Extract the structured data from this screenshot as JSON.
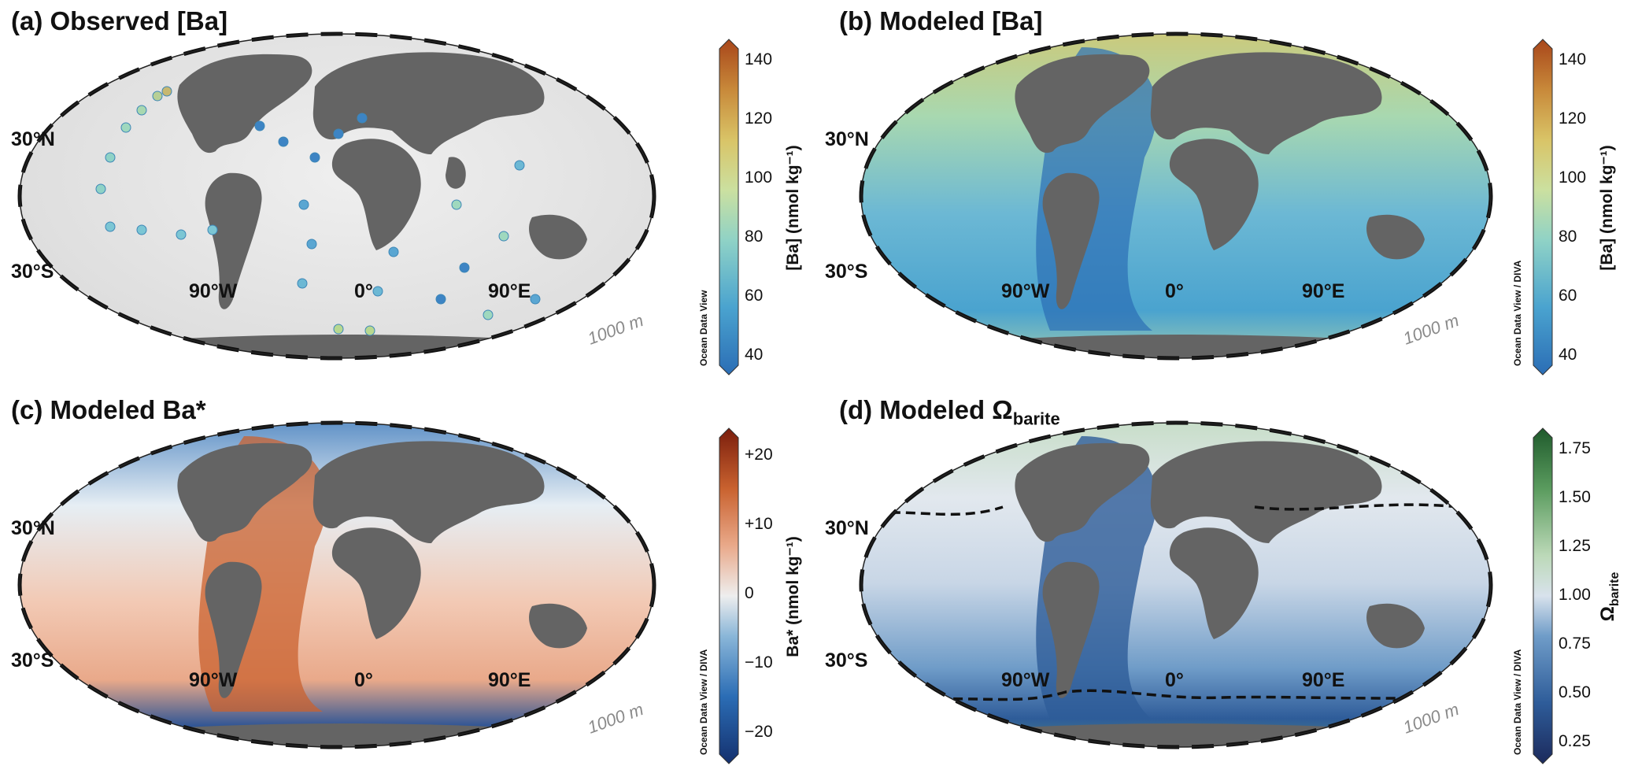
{
  "panels": [
    {
      "id": "a",
      "title": "(a) Observed [Ba]",
      "credit": "Ocean Data View",
      "colorbar_label": "[Ba] (nmol kg⁻¹)",
      "ticks": [
        "140",
        "120",
        "100",
        "80",
        "60",
        "40"
      ],
      "lat_labels": [
        "30°N",
        "30°S"
      ],
      "lon_labels": [
        "90°W",
        "0°",
        "90°E"
      ],
      "depth_label": "1000 m",
      "colormap": [
        "#2b6db5",
        "#4aa3cf",
        "#8fd2c6",
        "#cbe0a0",
        "#d9c467",
        "#c8893a",
        "#a8461a"
      ]
    },
    {
      "id": "b",
      "title": "(b) Modeled [Ba]",
      "credit": "Ocean Data View / DIVA",
      "colorbar_label": "[Ba] (nmol kg⁻¹)",
      "ticks": [
        "140",
        "120",
        "100",
        "80",
        "60",
        "40"
      ],
      "lat_labels": [
        "30°N",
        "30°S"
      ],
      "lon_labels": [
        "90°W",
        "0°",
        "90°E"
      ],
      "depth_label": "1000 m",
      "colormap": [
        "#2b6db5",
        "#4aa3cf",
        "#8fd2c6",
        "#cbe0a0",
        "#d9c467",
        "#c8893a",
        "#a8461a"
      ]
    },
    {
      "id": "c",
      "title": "(c) Modeled Ba*",
      "credit": "Ocean Data View / DIVA",
      "colorbar_label": "Ba* (nmol kg⁻¹)",
      "ticks": [
        "+20",
        "+10",
        "0",
        "−10",
        "−20"
      ],
      "lat_labels": [
        "30°N",
        "30°S"
      ],
      "lon_labels": [
        "90°W",
        "0°",
        "90°E"
      ],
      "depth_label": "1000 m",
      "colormap": [
        "#14306e",
        "#2b6db5",
        "#8ab6d8",
        "#eeeeee",
        "#e9a98a",
        "#c9622f",
        "#7a1d0c"
      ]
    },
    {
      "id": "d",
      "title_main": "(d) Modeled Ω",
      "title_sub": "barite",
      "credit": "Ocean Data View / DIVA",
      "colorbar_label_main": "Ω",
      "colorbar_label_sub": "barite",
      "ticks": [
        "1.75",
        "1.50",
        "1.25",
        "1.00",
        "0.75",
        "0.50",
        "0.25"
      ],
      "lat_labels": [
        "30°N",
        "30°S"
      ],
      "lon_labels": [
        "90°W",
        "0°",
        "90°E"
      ],
      "depth_label": "1000 m",
      "colormap": [
        "#1c2a5c",
        "#2e5c99",
        "#6f9cc8",
        "#d8e2ec",
        "#bcd9b8",
        "#5a9b5e",
        "#1f5a2c"
      ]
    }
  ]
}
